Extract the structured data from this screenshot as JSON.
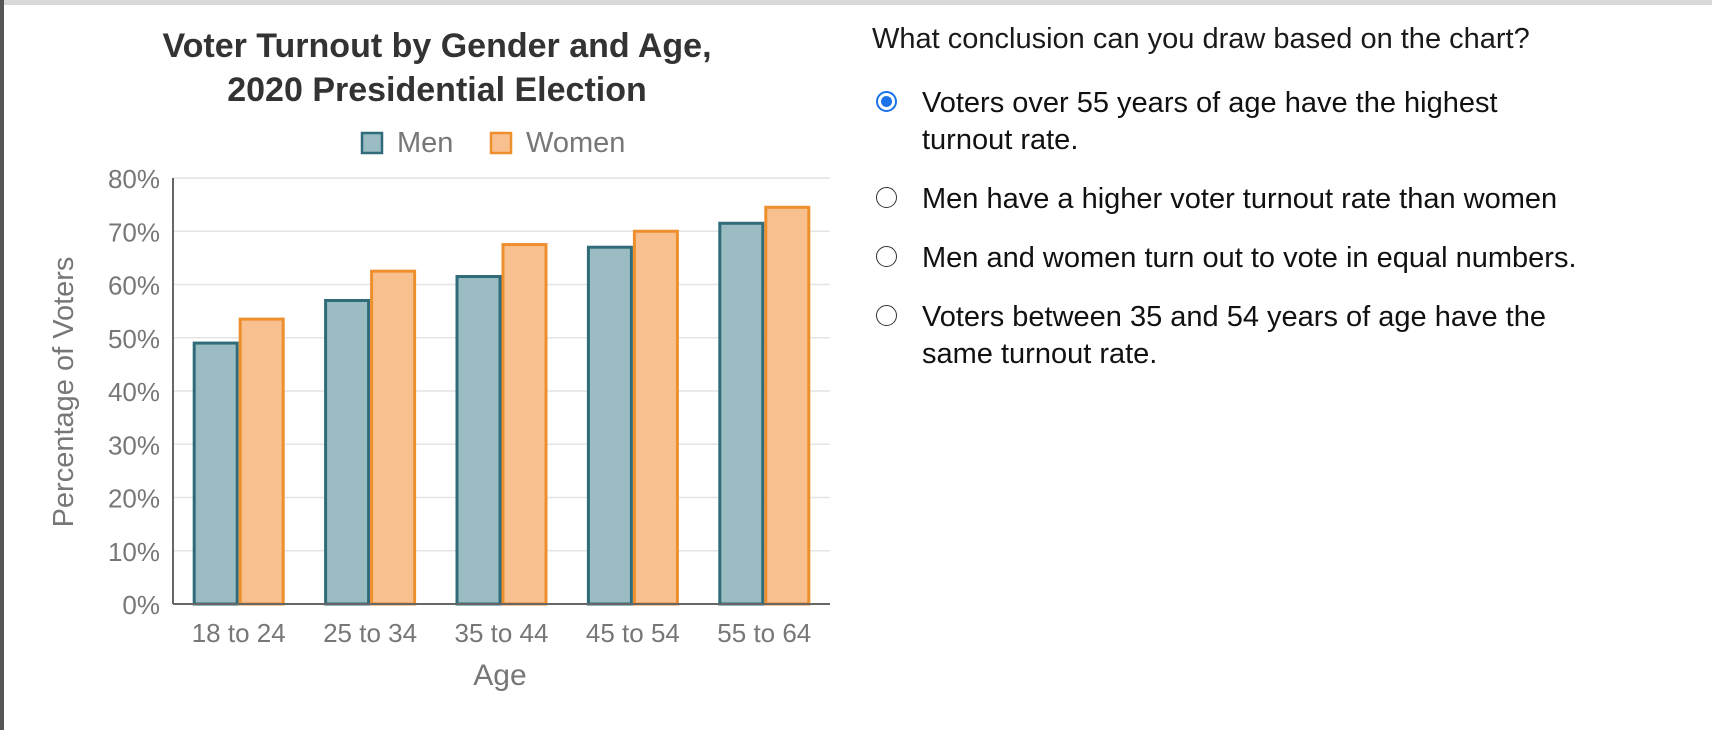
{
  "chart_data": {
    "type": "bar",
    "title": [
      "Voter Turnout by Gender and Age,",
      "2020 Presidential Election"
    ],
    "xlabel": "Age",
    "ylabel": "Percentage of Voters",
    "categories": [
      "18 to 24",
      "25 to 34",
      "35 to 44",
      "45 to 54",
      "55 to 64"
    ],
    "series": [
      {
        "name": "Men",
        "values": [
          49,
          57,
          61.5,
          67,
          71.5
        ],
        "fill": "#9bbcc3",
        "stroke": "#2f6b78"
      },
      {
        "name": "Women",
        "values": [
          53.5,
          62.5,
          67.5,
          70,
          74.5
        ],
        "fill": "#f9c08f",
        "stroke": "#ee8f2e"
      }
    ],
    "ylim": [
      0,
      80
    ],
    "yticks": [
      0,
      10,
      20,
      30,
      40,
      50,
      60,
      70,
      80
    ],
    "ytick_labels": [
      "0%",
      "10%",
      "20%",
      "30%",
      "40%",
      "50%",
      "60%",
      "70%",
      "80%"
    ],
    "grid": true,
    "legend": "top"
  },
  "question": {
    "prompt": "What conclusion can you draw based on the chart?",
    "options": [
      {
        "lines": [
          "Voters over 55 years of age have the highest",
          "turnout rate."
        ],
        "selected": true
      },
      {
        "lines": [
          "Men have a higher voter turnout rate than women"
        ],
        "selected": false
      },
      {
        "lines": [
          "Men and women turn out to vote in equal numbers."
        ],
        "selected": false
      },
      {
        "lines": [
          "Voters between 35 and 54 years of age have the",
          "same turnout rate."
        ],
        "selected": false
      }
    ]
  },
  "colors": {
    "accent": "#1a73e8",
    "text": "#1a1a1a",
    "axis_text": "#777777"
  }
}
